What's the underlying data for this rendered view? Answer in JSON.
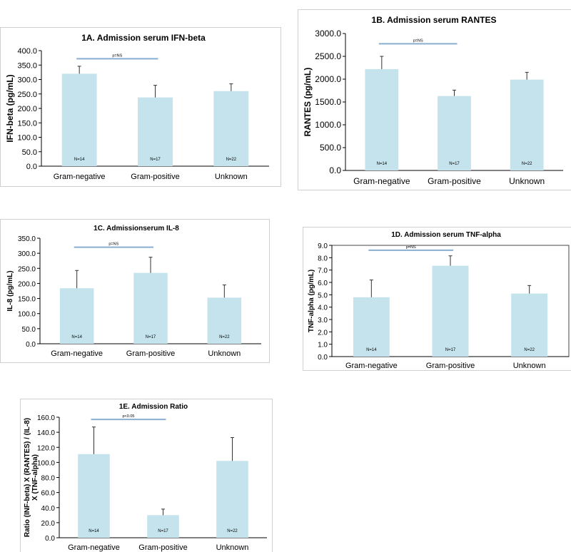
{
  "colors": {
    "bar": "#c5e3ec",
    "pline": "#8aaed0",
    "error": "#333333",
    "axis": "#000000"
  },
  "chart_data": [
    {
      "id": "a",
      "type": "bar",
      "title": "1A. Admission serum  IFN-beta",
      "ylabel": "IFN-beta (pg/mL)",
      "categories": [
        "Gram-negative",
        "Gram-positive",
        "Unknown"
      ],
      "values": [
        320,
        238,
        260
      ],
      "errors": [
        26,
        42,
        25
      ],
      "n_labels": [
        "N=14",
        "N=17",
        "N=22"
      ],
      "ylim": [
        0,
        400
      ],
      "ytick_step": 50,
      "tick_decimals": 1,
      "p_label": "p=NS",
      "p_span": [
        0,
        1
      ],
      "p_y": 372,
      "frame": false
    },
    {
      "id": "b",
      "type": "bar",
      "title": "1B. Admission serum RANTES",
      "ylabel": "RANTES (pg/mL)",
      "categories": [
        "Gram-negative",
        "Gram-positive",
        "Unknown"
      ],
      "values": [
        2220,
        1630,
        1990
      ],
      "errors": [
        280,
        130,
        160
      ],
      "n_labels": [
        "N=14",
        "N=17",
        "N=22"
      ],
      "ylim": [
        0,
        3000
      ],
      "ytick_step": 500,
      "tick_decimals": 1,
      "p_label": "p=NS",
      "p_span": [
        0,
        1
      ],
      "p_y": 2775,
      "frame": false
    },
    {
      "id": "c",
      "type": "bar",
      "title": "1C. Admissionserum IL-8",
      "ylabel": "IL-8 (pg/mL)",
      "categories": [
        "Gram-negative",
        "Gram-positive",
        "Unknown"
      ],
      "values": [
        184,
        235,
        153
      ],
      "errors": [
        59,
        52,
        42
      ],
      "n_labels": [
        "N=14",
        "N=17",
        "N=22"
      ],
      "ylim": [
        0,
        350
      ],
      "ytick_step": 50,
      "tick_decimals": 1,
      "p_label": "p=NS",
      "p_span": [
        0,
        1
      ],
      "p_y": 320,
      "frame": false
    },
    {
      "id": "d",
      "type": "bar",
      "title": "1D. Admission serum TNF-alpha",
      "ylabel": "TNF-alpha (pg/mL)",
      "categories": [
        "Gram-negative",
        "Gram-positive",
        "Unknown"
      ],
      "values": [
        4.8,
        7.35,
        5.1
      ],
      "errors": [
        1.4,
        0.8,
        0.65
      ],
      "n_labels": [
        "N=14",
        "N=17",
        "N=22"
      ],
      "ylim": [
        0,
        9
      ],
      "ytick_step": 1,
      "tick_decimals": 1,
      "p_label": "p=NS",
      "p_span": [
        0,
        1
      ],
      "p_y": 8.6,
      "frame": true
    },
    {
      "id": "e",
      "type": "bar",
      "title": "1E. Admission Ratio",
      "ylabel": "Ratio (INF-beta) X (RANTES) / (IL-8) X (TNF-alpha)",
      "ylabel_lines": [
        "Ratio (INF-beta) X (RANTES) / (IL-8)",
        "X (TNF-alpha)"
      ],
      "categories": [
        "Gram-negative",
        "Gram-positive",
        "Unknown"
      ],
      "values": [
        111,
        30,
        102
      ],
      "errors": [
        36,
        8,
        31
      ],
      "n_labels": [
        "N=14",
        "N=17",
        "N=22"
      ],
      "ylim": [
        0,
        160
      ],
      "ytick_step": 20,
      "tick_decimals": 1,
      "p_label": "p<0.05",
      "p_span": [
        0,
        1
      ],
      "p_y": 157,
      "frame": false
    }
  ]
}
